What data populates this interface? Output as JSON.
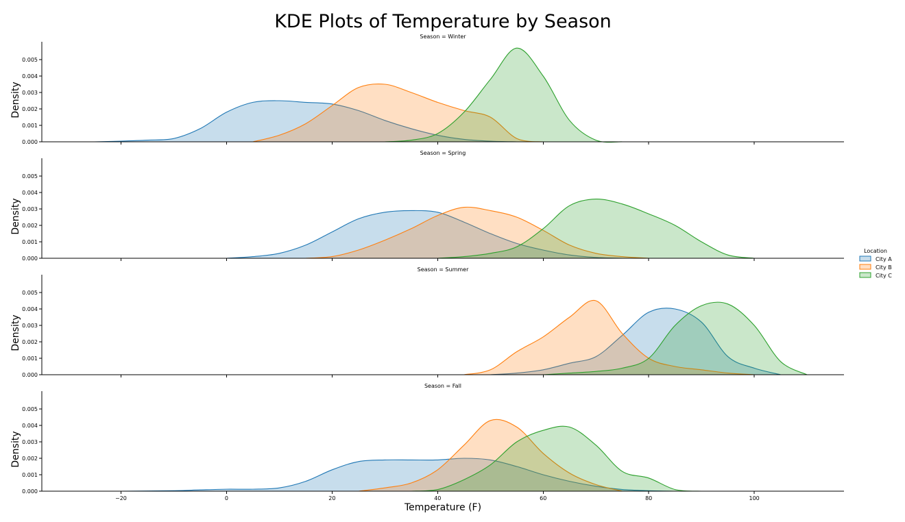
{
  "chart_data": {
    "type": "area",
    "title": "KDE Plots of Temperature by Season",
    "xlabel": "Temperature (F)",
    "ylabel": "Density",
    "xlim": [
      -35,
      117
    ],
    "ylim": [
      0,
      0.006
    ],
    "x_ticks": [
      -20,
      0,
      20,
      40,
      60,
      80,
      100
    ],
    "x_tick_labels": [
      "−20",
      "0",
      "20",
      "40",
      "60",
      "80",
      "100"
    ],
    "y_ticks": [
      0.0,
      0.001,
      0.002,
      0.003,
      0.004,
      0.005
    ],
    "y_tick_labels": [
      "0.000",
      "0.001",
      "0.002",
      "0.003",
      "0.004",
      "0.005"
    ],
    "grid": false,
    "legend": {
      "title": "Location",
      "placement": "right",
      "entries": [
        "City A",
        "City B",
        "City C"
      ]
    },
    "colors": {
      "City A": "#1f77b4",
      "City B": "#ff7f0e",
      "City C": "#2ca02c"
    },
    "panels": [
      {
        "title": "Season = Winter",
        "series": [
          {
            "name": "City A",
            "x": [
              -25,
              -20,
              -15,
              -10,
              -5,
              0,
              5,
              10,
              15,
              20,
              25,
              30,
              35,
              40,
              45,
              50,
              55
            ],
            "y": [
              0,
              4e-05,
              0.0001,
              0.0002,
              0.0008,
              0.0018,
              0.0024,
              0.0025,
              0.0024,
              0.0023,
              0.0019,
              0.0013,
              0.0008,
              0.0004,
              0.00015,
              4e-05,
              0
            ]
          },
          {
            "name": "City B",
            "x": [
              5,
              10,
              15,
              20,
              25,
              30,
              35,
              40,
              45,
              50,
              55,
              60
            ],
            "y": [
              0,
              0.0004,
              0.0011,
              0.0022,
              0.0033,
              0.0035,
              0.003,
              0.0024,
              0.0019,
              0.0015,
              0.0002,
              0
            ]
          },
          {
            "name": "City C",
            "x": [
              30,
              35,
              40,
              45,
              50,
              55,
              60,
              65,
              70,
              75
            ],
            "y": [
              0,
              0.0001,
              0.0005,
              0.0018,
              0.0038,
              0.0057,
              0.004,
              0.0013,
              0.0001,
              0
            ]
          }
        ]
      },
      {
        "title": "Season = Spring",
        "series": [
          {
            "name": "City A",
            "x": [
              0,
              5,
              10,
              15,
              20,
              25,
              30,
              35,
              40,
              45,
              50,
              55,
              60,
              65,
              70,
              75
            ],
            "y": [
              0,
              0.0001,
              0.0003,
              0.0008,
              0.0016,
              0.0024,
              0.0028,
              0.0029,
              0.0028,
              0.0022,
              0.0015,
              0.0009,
              0.0005,
              0.0002,
              5e-05,
              0
            ]
          },
          {
            "name": "City B",
            "x": [
              15,
              20,
              25,
              30,
              35,
              40,
              45,
              50,
              55,
              60,
              65,
              70,
              75,
              80
            ],
            "y": [
              0,
              0.0001,
              0.0005,
              0.0011,
              0.0018,
              0.0026,
              0.0031,
              0.0029,
              0.0025,
              0.0017,
              0.0008,
              0.0003,
              0.0001,
              0
            ]
          },
          {
            "name": "City C",
            "x": [
              40,
              45,
              50,
              55,
              60,
              65,
              70,
              75,
              80,
              85,
              90,
              95,
              100
            ],
            "y": [
              0,
              0.0001,
              0.0003,
              0.0007,
              0.0018,
              0.0032,
              0.0036,
              0.0033,
              0.0027,
              0.002,
              0.001,
              0.0002,
              0
            ]
          }
        ]
      },
      {
        "title": "Season = Summer",
        "series": [
          {
            "name": "City A",
            "x": [
              50,
              55,
              60,
              65,
              70,
              75,
              80,
              85,
              90,
              95,
              100,
              105
            ],
            "y": [
              0,
              0.0001,
              0.0003,
              0.0007,
              0.0011,
              0.0024,
              0.0038,
              0.004,
              0.0032,
              0.0011,
              0.0004,
              0
            ]
          },
          {
            "name": "City B",
            "x": [
              45,
              50,
              55,
              60,
              65,
              70,
              75,
              80,
              85,
              90,
              95,
              100
            ],
            "y": [
              0,
              0.0003,
              0.0014,
              0.0023,
              0.0035,
              0.0045,
              0.0025,
              0.001,
              0.0005,
              0.0003,
              0.0001,
              0
            ]
          },
          {
            "name": "City C",
            "x": [
              60,
              65,
              70,
              75,
              80,
              85,
              90,
              95,
              100,
              105,
              110
            ],
            "y": [
              0,
              0.0001,
              0.0002,
              0.0004,
              0.001,
              0.003,
              0.0042,
              0.0043,
              0.003,
              0.0008,
              0
            ]
          }
        ]
      },
      {
        "title": "Season = Fall",
        "series": [
          {
            "name": "City A",
            "x": [
              -20,
              -10,
              -5,
              0,
              5,
              10,
              15,
              20,
              25,
              30,
              35,
              40,
              45,
              50,
              55,
              60,
              65,
              70,
              75,
              80,
              85
            ],
            "y": [
              0,
              3e-05,
              8e-05,
              0.00012,
              0.00012,
              0.0002,
              0.0006,
              0.0013,
              0.0018,
              0.0019,
              0.0019,
              0.0019,
              0.002,
              0.0019,
              0.0015,
              0.001,
              0.0006,
              0.0003,
              0.0001,
              3e-05,
              0
            ]
          },
          {
            "name": "City B",
            "x": [
              25,
              30,
              35,
              40,
              45,
              50,
              55,
              60,
              65,
              70,
              75
            ],
            "y": [
              0,
              0.0002,
              0.0005,
              0.0013,
              0.0028,
              0.0043,
              0.0039,
              0.0023,
              0.0011,
              0.0004,
              0
            ]
          },
          {
            "name": "City C",
            "x": [
              35,
              40,
              45,
              50,
              55,
              60,
              65,
              70,
              75,
              80,
              85,
              90
            ],
            "y": [
              0,
              0.0001,
              0.0007,
              0.0016,
              0.003,
              0.0037,
              0.0039,
              0.0028,
              0.0012,
              0.0008,
              0.0001,
              0
            ]
          }
        ]
      }
    ]
  }
}
